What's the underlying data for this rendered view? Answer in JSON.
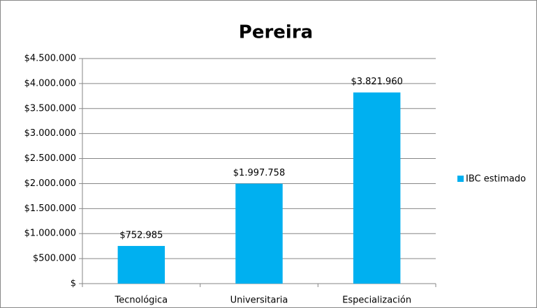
{
  "chart_data": {
    "type": "bar",
    "title": "Pereira",
    "categories": [
      "Tecnológica",
      "Universitaria",
      "Especialización"
    ],
    "series": [
      {
        "name": "IBC estimado",
        "color": "#00b0f0",
        "values": [
          752985,
          1997758,
          3821960
        ],
        "value_labels": [
          "$752.985",
          "$1.997.758",
          "$3.821.960"
        ]
      }
    ],
    "ylim": [
      0,
      4500000
    ],
    "yticks": [
      {
        "value": 0,
        "label": "$"
      },
      {
        "value": 500000,
        "label": "$500.000"
      },
      {
        "value": 1000000,
        "label": "$1.000.000"
      },
      {
        "value": 1500000,
        "label": "$1.500.000"
      },
      {
        "value": 2000000,
        "label": "$2.000.000"
      },
      {
        "value": 2500000,
        "label": "$2.500.000"
      },
      {
        "value": 3000000,
        "label": "$3.000.000"
      },
      {
        "value": 3500000,
        "label": "$3.500.000"
      },
      {
        "value": 4000000,
        "label": "$4.000.000"
      },
      {
        "value": 4500000,
        "label": "$4.500.000"
      }
    ],
    "grid": true,
    "legend": "right"
  }
}
